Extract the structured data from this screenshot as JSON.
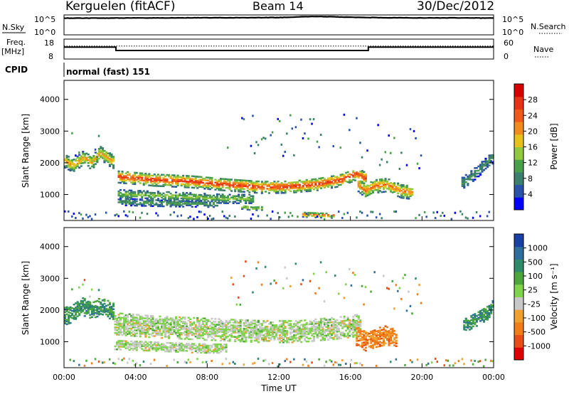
{
  "header": {
    "station": "Kerguelen (fitACF)",
    "beam": "Beam 14",
    "date": "30/Dec/2012"
  },
  "colors": {
    "scale": [
      "#0000ff",
      "#2a52a8",
      "#3d7f6e",
      "#4a9f4a",
      "#90c93c",
      "#e8c21c",
      "#f28a1e",
      "#ee5a18",
      "#e63216",
      "#d60000"
    ],
    "velocity": [
      "#1a3fa6",
      "#2f6e9c",
      "#2f8a6a",
      "#4ca63c",
      "#7fd44a",
      "#c8c8c8",
      "#f0a030",
      "#f07d18",
      "#e84e14",
      "#dc0000"
    ],
    "noise_line": "#000000"
  },
  "chart_data": [
    {
      "type": "line",
      "panel": "noise",
      "left_label": "N.Sky",
      "right_label": "N.Search",
      "left_ticks": [
        "10^5",
        "10^0"
      ],
      "right_ticks": [
        "10^5",
        "10^0"
      ],
      "x": [
        0,
        2,
        4,
        6,
        8,
        10,
        12,
        13,
        14,
        15,
        16,
        18,
        20,
        22,
        24
      ],
      "y_log10": [
        4.2,
        4.2,
        4.25,
        4.25,
        4.3,
        4.3,
        4.35,
        4.5,
        4.6,
        4.55,
        4.4,
        4.3,
        4.25,
        4.25,
        4.2
      ],
      "ylim_log10": [
        0,
        5
      ]
    },
    {
      "type": "line",
      "panel": "frequency",
      "left_label": "Freq.",
      "left_unit": "[MHz]",
      "right_label": "Nave",
      "left_ticks": [
        18,
        8
      ],
      "right_ticks": [
        60,
        0
      ],
      "ylim": [
        8,
        18
      ],
      "freq_x": [
        0,
        2.9,
        2.9,
        17.0,
        17.0,
        24
      ],
      "freq_y": [
        14,
        14,
        12.3,
        12.3,
        14,
        14
      ],
      "nave_level": 14.5
    },
    {
      "type": "table",
      "panel": "cpid",
      "label": "CPID",
      "value": "normal (fast) 151"
    },
    {
      "type": "heatmap",
      "panel": "power",
      "ylabel": "Slant Range [km]",
      "yticks": [
        1000,
        2000,
        3000,
        4000
      ],
      "ylim": [
        180,
        4600
      ],
      "colorbar_title": "Power [dB]",
      "colorbar_ticks": [
        "4",
        "8",
        "12",
        "16",
        "20",
        "24",
        "28"
      ],
      "bands": [
        {
          "x": [
            0.0,
            0.5,
            1.0,
            1.5,
            2.0,
            2.5,
            2.8
          ],
          "r": [
            2050,
            1900,
            2150,
            2000,
            2300,
            2100,
            2000
          ],
          "w": 170,
          "peak": 0.65
        },
        {
          "x": [
            3.0,
            5.0,
            7.0,
            9.0,
            11.0,
            12.5,
            14.0,
            15.5,
            16.3,
            16.8
          ],
          "r": [
            1550,
            1450,
            1400,
            1300,
            1220,
            1230,
            1300,
            1450,
            1650,
            1500
          ],
          "w": 150,
          "peak": 0.9
        },
        {
          "x": [
            3.0,
            5.0,
            7.0,
            9.0,
            10.5
          ],
          "r": [
            1000,
            950,
            900,
            850,
            850
          ],
          "w": 110,
          "peak": 0.45
        },
        {
          "x": [
            3.0,
            5.0,
            7.0,
            8.5
          ],
          "r": [
            750,
            720,
            700,
            690
          ],
          "w": 80,
          "peak": 0.35
        },
        {
          "x": [
            16.3,
            16.8,
            17.3,
            18.0,
            18.8,
            19.5
          ],
          "r": [
            1350,
            1100,
            1250,
            1300,
            1100,
            1050
          ],
          "w": 170,
          "peak": 0.75
        },
        {
          "x": [
            22.2,
            22.8,
            23.4,
            24.0
          ],
          "r": [
            1350,
            1600,
            1900,
            2200
          ],
          "w": 150,
          "peak": 0.3
        },
        {
          "x": [
            13.2,
            13.8,
            14.4,
            15.0
          ],
          "r": [
            360,
            340,
            330,
            320
          ],
          "w": 60,
          "peak": 0.8
        },
        {
          "x": [
            9.8,
            10.5,
            11.0
          ],
          "r": [
            600,
            550,
            560
          ],
          "w": 50,
          "peak": 0.55
        }
      ],
      "scatter_regions": [
        {
          "x": [
            0.3,
            2.0
          ],
          "r": [
            2200,
            3100
          ]
        },
        {
          "x": [
            9.0,
            17.5
          ],
          "r": [
            2200,
            3600
          ]
        },
        {
          "x": [
            17.5,
            20.0
          ],
          "r": [
            1800,
            3200
          ]
        },
        {
          "x": [
            0.0,
            24.0
          ],
          "r": [
            250,
            500
          ]
        }
      ]
    },
    {
      "type": "heatmap",
      "panel": "velocity",
      "ylabel": "Slant Range [km]",
      "yticks": [
        1000,
        2000,
        3000,
        4000
      ],
      "ylim": [
        180,
        4600
      ],
      "xlabel": "Time UT",
      "xticks": [
        "00:00",
        "04:00",
        "08:00",
        "12:00",
        "16:00",
        "20:00",
        "00:00"
      ],
      "xlim": [
        0,
        24
      ],
      "colorbar_title": "Velocity [m s⁻¹]",
      "colorbar_ticks": [
        "1000",
        "500",
        "100",
        "25",
        "-25",
        "-100",
        "-500",
        "-1000"
      ],
      "bands": [
        {
          "x": [
            0.0,
            0.5,
            1.0,
            1.5,
            2.0,
            2.5,
            2.8
          ],
          "r": [
            1800,
            1900,
            2100,
            2000,
            2100,
            2000,
            1900
          ],
          "w": 220,
          "v": 0.75
        },
        {
          "x": [
            2.8,
            5.0,
            7.0,
            9.0,
            11.0,
            13.0,
            15.0,
            16.5
          ],
          "r": [
            1550,
            1450,
            1400,
            1350,
            1300,
            1300,
            1400,
            1500
          ],
          "w": 260,
          "v": 0.5
        },
        {
          "x": [
            2.8,
            5.0,
            7.0,
            9.0
          ],
          "r": [
            900,
            850,
            800,
            780
          ],
          "w": 120,
          "v": 0.5
        },
        {
          "x": [
            16.2,
            16.8,
            17.3,
            18.0,
            18.5
          ],
          "r": [
            1200,
            1000,
            1100,
            1200,
            1050
          ],
          "w": 230,
          "v": 0.25
        },
        {
          "x": [
            22.3,
            23.0,
            23.6,
            24.0
          ],
          "r": [
            1500,
            1700,
            1900,
            2200
          ],
          "w": 170,
          "v": 0.75
        }
      ],
      "scatter_regions": [
        {
          "x": [
            0.3,
            2.0
          ],
          "r": [
            2200,
            3100
          ]
        },
        {
          "x": [
            9.0,
            17.5
          ],
          "r": [
            2200,
            3600
          ]
        },
        {
          "x": [
            17.5,
            20.0
          ],
          "r": [
            1800,
            3200
          ]
        },
        {
          "x": [
            0.0,
            24.0
          ],
          "r": [
            250,
            500
          ]
        }
      ]
    }
  ]
}
